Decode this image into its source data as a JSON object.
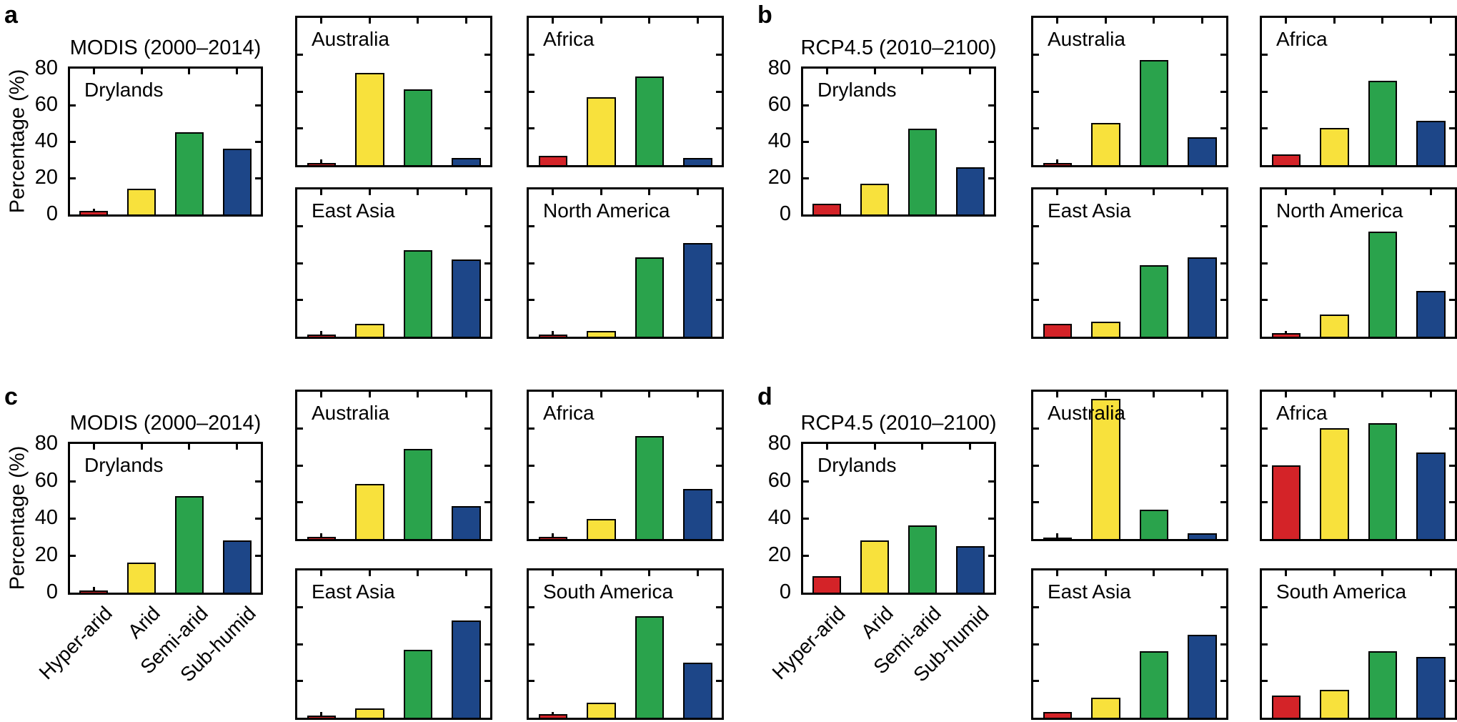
{
  "figure": {
    "ylabel": "Percentage (%)",
    "categories": [
      "Hyper-arid",
      "Arid",
      "Semi-arid",
      "Sub-humid"
    ],
    "colors": {
      "Hyper-arid": "#d42328",
      "Arid": "#f8e13c",
      "Semi-arid": "#2aa34c",
      "Sub-humid": "#1d4688"
    },
    "ylim": [
      0,
      80
    ],
    "yticks": [
      80,
      60,
      40,
      20,
      0
    ]
  },
  "chart_data": [
    {
      "panel": "a",
      "type": "bar",
      "title": "MODIS (2000–2014)",
      "ylabel": "Percentage (%)",
      "ylim": [
        0,
        80
      ],
      "categories": [
        "Hyper-arid",
        "Arid",
        "Semi-arid",
        "Sub-humid"
      ],
      "charts": [
        {
          "region": "Drylands",
          "values": [
            2,
            14,
            45,
            36
          ]
        },
        {
          "region": "Australia",
          "values": [
            1,
            50,
            41,
            4
          ]
        },
        {
          "region": "Africa",
          "values": [
            5,
            37,
            48,
            4
          ]
        },
        {
          "region": "East Asia",
          "values": [
            1,
            7,
            47,
            42
          ]
        },
        {
          "region": "North America",
          "values": [
            1,
            3,
            43,
            51
          ]
        }
      ]
    },
    {
      "panel": "b",
      "type": "bar",
      "title": "RCP4.5 (2010–2100)",
      "ylabel": "Percentage (%)",
      "ylim": [
        0,
        80
      ],
      "categories": [
        "Hyper-arid",
        "Arid",
        "Semi-arid",
        "Sub-humid"
      ],
      "charts": [
        {
          "region": "Drylands",
          "values": [
            6,
            17,
            47,
            26
          ]
        },
        {
          "region": "Australia",
          "values": [
            1,
            23,
            57,
            15
          ]
        },
        {
          "region": "Africa",
          "values": [
            6,
            20,
            46,
            24
          ]
        },
        {
          "region": "East Asia",
          "values": [
            7,
            8,
            39,
            43
          ]
        },
        {
          "region": "North America",
          "values": [
            2,
            12,
            57,
            25
          ]
        }
      ]
    },
    {
      "panel": "c",
      "type": "bar",
      "title": "MODIS (2000–2014)",
      "ylabel": "Percentage (%)",
      "ylim": [
        0,
        80
      ],
      "categories": [
        "Hyper-arid",
        "Arid",
        "Semi-arid",
        "Sub-humid"
      ],
      "charts": [
        {
          "region": "Drylands",
          "values": [
            1,
            16,
            52,
            28
          ]
        },
        {
          "region": "Australia",
          "values": [
            1,
            30,
            49,
            18
          ]
        },
        {
          "region": "Africa",
          "values": [
            1,
            11,
            56,
            27
          ]
        },
        {
          "region": "East Asia",
          "values": [
            1,
            5,
            37,
            53
          ]
        },
        {
          "region": "South America",
          "values": [
            2,
            8,
            55,
            30
          ]
        }
      ]
    },
    {
      "panel": "d",
      "type": "bar",
      "title": "RCP4.5 (2010–2100)",
      "ylabel": "Percentage (%)",
      "ylim": [
        0,
        80
      ],
      "categories": [
        "Hyper-arid",
        "Arid",
        "Semi-arid",
        "Sub-humid"
      ],
      "charts": [
        {
          "region": "Drylands",
          "values": [
            9,
            28,
            36,
            25
          ]
        },
        {
          "region": "Australia",
          "values": [
            0.5,
            76,
            16,
            3
          ]
        },
        {
          "region": "Africa",
          "values": [
            40,
            60,
            63,
            47
          ]
        },
        {
          "region": "East Asia",
          "values": [
            3,
            11,
            36,
            45
          ]
        },
        {
          "region": "South America",
          "values": [
            12,
            15,
            36,
            33
          ]
        }
      ]
    }
  ]
}
